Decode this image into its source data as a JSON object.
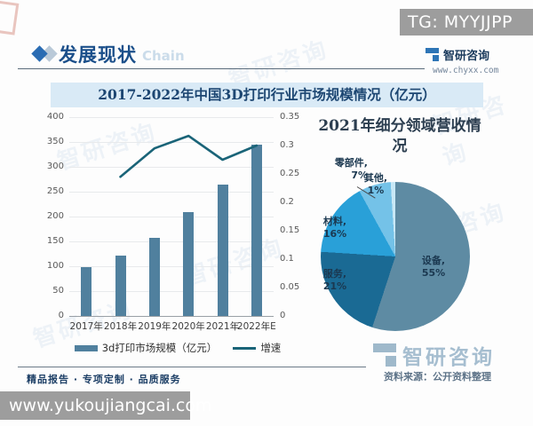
{
  "banners": {
    "top_right": "TG: MYYJJPP",
    "bottom_left": "www.yukoujiangcai.com"
  },
  "header": {
    "section_title": "发展现状",
    "section_watermark": "Chain",
    "brand": "智研咨询",
    "brand_site": "www.chyxx.com"
  },
  "footer": {
    "tagline": "精品报告 · 专项定制 · 品质服务",
    "source": "资料来源：公开资料整理",
    "brand": "智研咨询"
  },
  "watermark_text": "智研咨询",
  "colors": {
    "bar": "#50809e",
    "line": "#1a6478",
    "title_band_bg": "#d9eaf6",
    "title_text": "#1c4672",
    "banner_gray": "#9d9d9d",
    "accent_blue": "#2e75b6",
    "footer_brand": "#9fb9cb"
  },
  "chart_data": [
    {
      "type": "bar",
      "title": "2017-2022年中国3D打印行业市场规模情况（亿元）",
      "categories": [
        "2017年",
        "2018年",
        "2019年",
        "2020年",
        "2021年",
        "2022年E"
      ],
      "series": [
        {
          "name": "3d打印市场规模（亿元）",
          "type": "bar",
          "axis": "left",
          "color": "#50809e",
          "values": [
            98,
            122,
            157,
            209,
            265,
            344
          ]
        },
        {
          "name": "增速",
          "type": "line",
          "axis": "right",
          "color": "#1a6478",
          "values": [
            null,
            0.245,
            0.295,
            0.317,
            0.275,
            0.3
          ]
        }
      ],
      "left_axis": {
        "min": 0,
        "max": 400,
        "step": 50,
        "ticks": [
          "400",
          "350",
          "300",
          "250",
          "200",
          "150",
          "100",
          "50",
          "0"
        ]
      },
      "right_axis": {
        "min": 0,
        "max": 0.35,
        "step": 0.05,
        "ticks": [
          "0.35",
          "0.3",
          "0.25",
          "0.2",
          "0.15",
          "0.1",
          "0.05",
          "0"
        ]
      },
      "grid": true,
      "legend_position": "bottom"
    },
    {
      "type": "pie",
      "title": "2021年细分领域营收情况",
      "slices": [
        {
          "key": "equipment",
          "name": "设备",
          "label": "设备,",
          "pct_label": "55%",
          "value": 55,
          "color": "#5e8ba3"
        },
        {
          "key": "services",
          "name": "服务",
          "label": "服务,",
          "pct_label": "21%",
          "value": 21,
          "color": "#1a6a94"
        },
        {
          "key": "materials",
          "name": "材料",
          "label": "材料,",
          "pct_label": "16%",
          "value": 16,
          "color": "#29a0d8"
        },
        {
          "key": "components",
          "name": "零部件",
          "label": "零部件,",
          "pct_label": "7%",
          "value": 7,
          "color": "#74c2e8"
        },
        {
          "key": "others",
          "name": "其他",
          "label": "其他,",
          "pct_label": "1%",
          "value": 1,
          "color": "#c8e8f6"
        }
      ]
    }
  ]
}
